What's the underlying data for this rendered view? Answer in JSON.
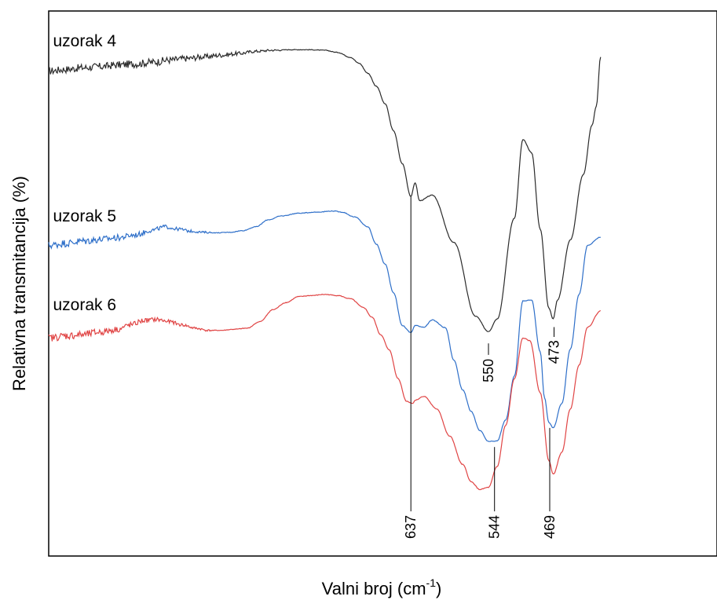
{
  "chart_data": {
    "type": "line",
    "title": "",
    "xlabel": "Valni broj (cm",
    "xlabel_sup": "-1",
    "xlabel_close": ")",
    "ylabel": "Relativna transmitancija (%)",
    "x_direction": "descending",
    "xlim": [
      1170,
      395
    ],
    "ylim": [
      0,
      100
    ],
    "grid": false,
    "legend": "none",
    "series": [
      {
        "name": "uzorak 4",
        "color": "#2b2b2b",
        "noise_below_x": 900,
        "points": [
          [
            1170,
            89.0
          ],
          [
            1150,
            89.3
          ],
          [
            1130,
            89.6
          ],
          [
            1110,
            89.8
          ],
          [
            1090,
            90.1
          ],
          [
            1070,
            90.3
          ],
          [
            1050,
            90.6
          ],
          [
            1030,
            91.0
          ],
          [
            1010,
            91.3
          ],
          [
            990,
            91.6
          ],
          [
            970,
            91.9
          ],
          [
            950,
            92.2
          ],
          [
            930,
            92.6
          ],
          [
            910,
            92.8
          ],
          [
            890,
            92.9
          ],
          [
            870,
            92.9
          ],
          [
            850,
            92.8
          ],
          [
            835,
            92.4
          ],
          [
            820,
            91.5
          ],
          [
            810,
            90.4
          ],
          [
            800,
            88.6
          ],
          [
            790,
            86.2
          ],
          [
            780,
            83.0
          ],
          [
            770,
            78.0
          ],
          [
            760,
            72.0
          ],
          [
            750,
            66.0
          ],
          [
            745,
            68.5
          ],
          [
            740,
            65.2
          ],
          [
            725,
            66.2
          ],
          [
            700,
            57.5
          ],
          [
            675,
            44.0
          ],
          [
            660,
            41.2
          ],
          [
            650,
            43.5
          ],
          [
            630,
            62.0
          ],
          [
            620,
            76.4
          ],
          [
            610,
            74.0
          ],
          [
            600,
            60.0
          ],
          [
            590,
            45.5
          ],
          [
            585,
            43.5
          ],
          [
            580,
            47.0
          ],
          [
            565,
            58.0
          ],
          [
            550,
            70.0
          ],
          [
            540,
            79.0
          ],
          [
            535,
            82.5
          ],
          [
            530,
            91.6
          ]
        ]
      },
      {
        "name": "uzorak 5",
        "color": "#2e6fc9",
        "noise_below_x": 980,
        "points": [
          [
            1170,
            57.0
          ],
          [
            1150,
            57.4
          ],
          [
            1130,
            57.8
          ],
          [
            1110,
            58.1
          ],
          [
            1090,
            58.4
          ],
          [
            1070,
            58.9
          ],
          [
            1050,
            59.8
          ],
          [
            1035,
            60.4
          ],
          [
            1020,
            60.0
          ],
          [
            1005,
            59.6
          ],
          [
            990,
            59.4
          ],
          [
            975,
            59.3
          ],
          [
            960,
            59.4
          ],
          [
            945,
            59.7
          ],
          [
            930,
            60.4
          ],
          [
            915,
            61.7
          ],
          [
            900,
            62.4
          ],
          [
            880,
            62.9
          ],
          [
            860,
            63.1
          ],
          [
            840,
            63.3
          ],
          [
            830,
            63.1
          ],
          [
            815,
            62.2
          ],
          [
            800,
            60.4
          ],
          [
            790,
            57.2
          ],
          [
            780,
            53.6
          ],
          [
            770,
            48.3
          ],
          [
            760,
            42.3
          ],
          [
            750,
            41.0
          ],
          [
            745,
            42.3
          ],
          [
            735,
            42.0
          ],
          [
            725,
            43.3
          ],
          [
            710,
            41.9
          ],
          [
            700,
            35.9
          ],
          [
            690,
            30.5
          ],
          [
            680,
            26.5
          ],
          [
            670,
            23.0
          ],
          [
            660,
            21.0
          ],
          [
            650,
            21.1
          ],
          [
            640,
            25.0
          ],
          [
            630,
            33.0
          ],
          [
            620,
            46.8
          ],
          [
            610,
            47.0
          ],
          [
            600,
            37.5
          ],
          [
            595,
            29.0
          ],
          [
            590,
            24.5
          ],
          [
            585,
            23.5
          ],
          [
            575,
            28.0
          ],
          [
            565,
            38.0
          ],
          [
            555,
            48.0
          ],
          [
            545,
            57.0
          ],
          [
            530,
            58.5
          ]
        ]
      },
      {
        "name": "uzorak 6",
        "color": "#e04444",
        "noise_below_x": 980,
        "points": [
          [
            1170,
            40.0
          ],
          [
            1150,
            40.4
          ],
          [
            1130,
            40.6
          ],
          [
            1110,
            41.1
          ],
          [
            1090,
            41.6
          ],
          [
            1075,
            42.4
          ],
          [
            1060,
            43.2
          ],
          [
            1045,
            43.4
          ],
          [
            1030,
            43.0
          ],
          [
            1015,
            42.4
          ],
          [
            1000,
            41.8
          ],
          [
            985,
            41.4
          ],
          [
            970,
            41.4
          ],
          [
            955,
            41.6
          ],
          [
            940,
            41.8
          ],
          [
            925,
            43.0
          ],
          [
            910,
            45.2
          ],
          [
            895,
            46.5
          ],
          [
            880,
            47.6
          ],
          [
            865,
            47.8
          ],
          [
            850,
            48.0
          ],
          [
            835,
            47.8
          ],
          [
            820,
            47.2
          ],
          [
            805,
            45.6
          ],
          [
            795,
            43.8
          ],
          [
            785,
            40.6
          ],
          [
            775,
            37.8
          ],
          [
            765,
            32.6
          ],
          [
            755,
            28.4
          ],
          [
            748,
            28.0
          ],
          [
            745,
            28.6
          ],
          [
            735,
            29.3
          ],
          [
            720,
            27.0
          ],
          [
            705,
            22.0
          ],
          [
            690,
            16.8
          ],
          [
            680,
            13.6
          ],
          [
            670,
            12.2
          ],
          [
            660,
            12.6
          ],
          [
            650,
            16.4
          ],
          [
            640,
            24.0
          ],
          [
            630,
            32.5
          ],
          [
            620,
            40.0
          ],
          [
            612,
            39.5
          ],
          [
            600,
            30.0
          ],
          [
            590,
            17.5
          ],
          [
            585,
            15.0
          ],
          [
            575,
            19.0
          ],
          [
            565,
            27.0
          ],
          [
            555,
            35.0
          ],
          [
            545,
            42.0
          ],
          [
            530,
            45.0
          ]
        ]
      }
    ],
    "series_labels": [
      {
        "text": "uzorak 4",
        "x": 1165,
        "y": 93.5
      },
      {
        "text": "uzorak 5",
        "x": 1165,
        "y": 61.4
      },
      {
        "text": "uzorak 6",
        "x": 1165,
        "y": 45.1
      }
    ],
    "peak_annotations": [
      {
        "label": "637",
        "x": 750,
        "y_top": 66.0,
        "y_bottom": 8.2,
        "text_y": 7.5,
        "side": "below"
      },
      {
        "label": "544",
        "x": 653,
        "y_top": 20.0,
        "y_bottom": 8.2,
        "text_y": 7.5,
        "side": "below"
      },
      {
        "label": "469",
        "x": 589,
        "y_top": 23.5,
        "y_bottom": 8.2,
        "text_y": 7.5,
        "side": "below"
      },
      {
        "label": "550",
        "x": 660,
        "y_top": 39.0,
        "y_bottom": 36.9,
        "text_y": 36.2,
        "side": "below"
      },
      {
        "label": "473",
        "x": 584,
        "y_top": 42.0,
        "y_bottom": 40.2,
        "text_y": 39.6,
        "side": "below"
      }
    ]
  }
}
